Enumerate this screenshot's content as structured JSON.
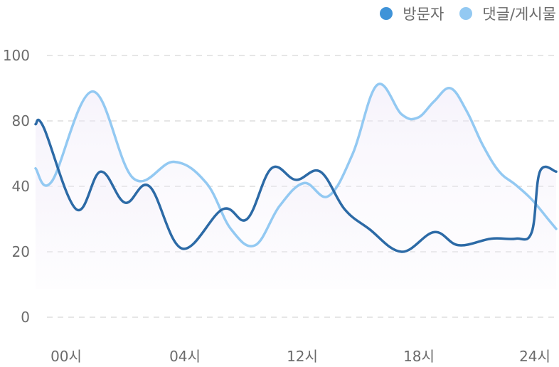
{
  "chart_data": {
    "type": "line",
    "title": "",
    "xlabel": "",
    "ylabel": "",
    "ylim": [
      0,
      100
    ],
    "y_ticks": [
      0,
      20,
      40,
      80,
      100
    ],
    "x_tick_labels": [
      "00시",
      "04시",
      "12시",
      "18시",
      "24시"
    ],
    "grid": "horizontal dashed",
    "legend_position": "top-right",
    "series": [
      {
        "name": "방문자",
        "color": "#2c6aa6",
        "points": [
          [
            0,
            78
          ],
          [
            0.5,
            76
          ],
          [
            2.5,
            33
          ],
          [
            4.0,
            49
          ],
          [
            5.5,
            35
          ],
          [
            7.0,
            40
          ],
          [
            9.0,
            21
          ],
          [
            11.5,
            33
          ],
          [
            13.0,
            30
          ],
          [
            14.5,
            51
          ],
          [
            16.0,
            44
          ],
          [
            17.5,
            49
          ],
          [
            19.0,
            33
          ],
          [
            20.5,
            27
          ],
          [
            22.5,
            20
          ],
          [
            24.5,
            26
          ],
          [
            26.0,
            22
          ],
          [
            28.0,
            24
          ],
          [
            29.5,
            24
          ],
          [
            30.5,
            26
          ],
          [
            31.0,
            49
          ],
          [
            32.0,
            49
          ]
        ]
      },
      {
        "name": "댓글/게시물",
        "color": "#93c9f2",
        "points": [
          [
            0,
            51
          ],
          [
            1.0,
            43
          ],
          [
            3.5,
            89
          ],
          [
            6.0,
            45
          ],
          [
            8.5,
            55
          ],
          [
            10.5,
            42
          ],
          [
            12.0,
            27
          ],
          [
            13.5,
            22
          ],
          [
            15.0,
            34
          ],
          [
            16.5,
            42
          ],
          [
            18.0,
            37
          ],
          [
            19.5,
            60
          ],
          [
            21.0,
            91
          ],
          [
            22.5,
            82
          ],
          [
            23.5,
            81
          ],
          [
            24.5,
            86
          ],
          [
            25.5,
            90
          ],
          [
            26.5,
            83
          ],
          [
            27.5,
            65
          ],
          [
            28.5,
            49
          ],
          [
            29.5,
            41
          ],
          [
            30.5,
            36
          ],
          [
            31.5,
            30
          ],
          [
            32.0,
            27
          ]
        ]
      }
    ]
  }
}
